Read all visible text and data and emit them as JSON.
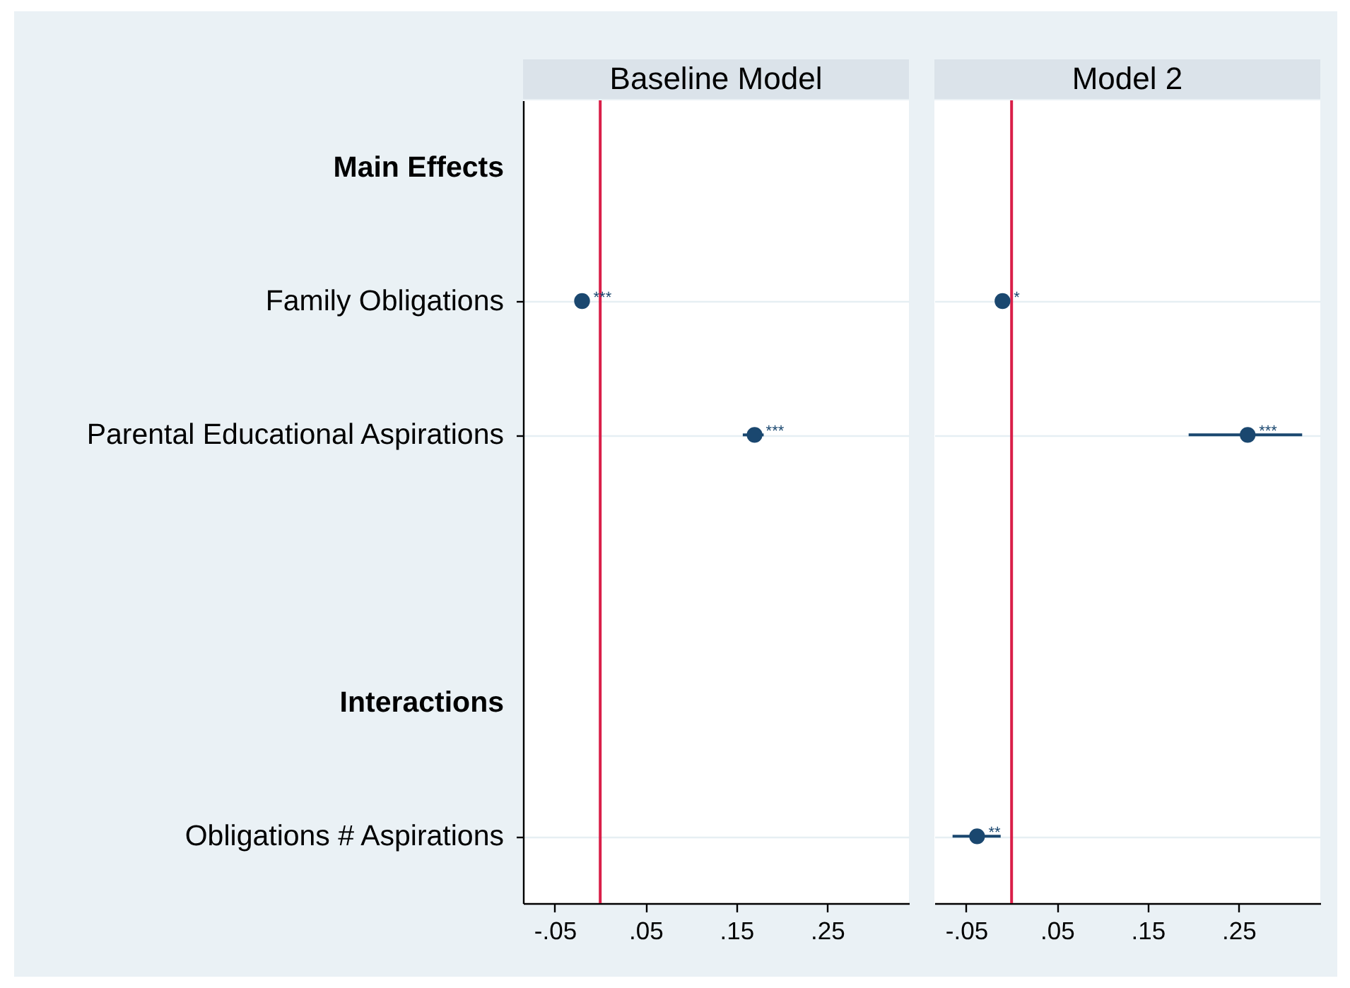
{
  "chart_data": [
    {
      "type": "scatter",
      "orientation": "horizontal",
      "title": "Baseline Model",
      "categories": [
        "Main Effects",
        "Family Obligations",
        "Parental Educational Aspirations",
        null,
        "Interactions",
        "Obligations # Aspirations"
      ],
      "values": [
        null,
        -0.02,
        0.17,
        null,
        null,
        null
      ],
      "errors": [
        null,
        null,
        [
          0.157,
          0.18
        ],
        null,
        null,
        null
      ],
      "value_labels": [
        null,
        "***",
        "***",
        null,
        null,
        null
      ],
      "color": "#1a476f",
      "marker": "circle",
      "xlim": [
        -0.085,
        0.34
      ],
      "xticks": [
        {
          "value": -0.05,
          "label": "-.05"
        },
        {
          "value": 0.05,
          "label": ".05"
        },
        {
          "value": 0.15,
          "label": ".15"
        },
        {
          "value": 0.25,
          "label": ".25"
        }
      ],
      "ref_lines": [
        {
          "axis": "x",
          "value": 0,
          "color": "#d91e48"
        }
      ],
      "grid": "y"
    },
    {
      "type": "scatter",
      "orientation": "horizontal",
      "title": "Model 2",
      "categories": [
        "Main Effects",
        "Family Obligations",
        "Parental Educational Aspirations",
        null,
        "Interactions",
        "Obligations # Aspirations"
      ],
      "values": [
        null,
        -0.01,
        0.26,
        null,
        null,
        -0.038
      ],
      "errors": [
        null,
        null,
        [
          0.195,
          0.32
        ],
        null,
        null,
        [
          -0.065,
          -0.012
        ]
      ],
      "value_labels": [
        null,
        "*",
        "***",
        null,
        null,
        "**"
      ],
      "color": "#1a476f",
      "marker": "circle",
      "xlim": [
        -0.085,
        0.34
      ],
      "xticks": [
        {
          "value": -0.05,
          "label": "-.05"
        },
        {
          "value": 0.05,
          "label": ".05"
        },
        {
          "value": 0.15,
          "label": ".15"
        },
        {
          "value": 0.25,
          "label": ".25"
        }
      ],
      "ref_lines": [
        {
          "axis": "x",
          "value": 0,
          "color": "#d91e48"
        }
      ],
      "grid": "y",
      "tick_labels": "x"
    }
  ]
}
